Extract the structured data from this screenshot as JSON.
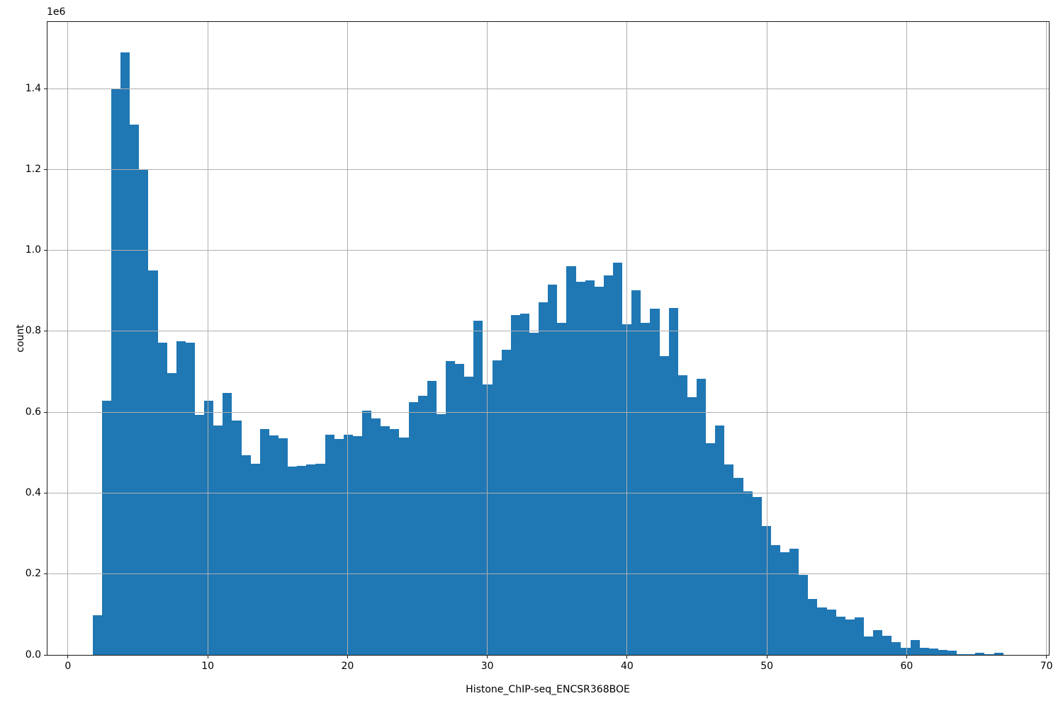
{
  "figure": {
    "background": "#ffffff",
    "bar_color": "#1f77b4",
    "grid_color": "#b0b0b0",
    "spine_color": "#1a1a1a",
    "text_color": "#000000"
  },
  "chart_data": {
    "type": "bar",
    "subtype": "histogram",
    "title": "",
    "xlabel": "Histone_ChIP-seq_ENCSR368BOE",
    "ylabel": "count",
    "y_offset_text": "1e6",
    "grid": true,
    "legend": false,
    "xlim": [
      -1.49,
      70.17
    ],
    "ylim": [
      0,
      1564500
    ],
    "x_ticks": [
      0,
      10,
      20,
      30,
      40,
      50,
      60,
      70
    ],
    "x_tick_labels": [
      "0",
      "10",
      "20",
      "30",
      "40",
      "50",
      "60",
      "70"
    ],
    "y_ticks": [
      0,
      200000,
      400000,
      600000,
      800000,
      1000000,
      1200000,
      1400000
    ],
    "y_tick_labels": [
      "0.0",
      "0.2",
      "0.4",
      "0.6",
      "0.8",
      "1.0",
      "1.2",
      "1.4"
    ],
    "bin_start": 1.77,
    "bin_width": 0.6647,
    "counts": [
      98000,
      629000,
      1400000,
      1490000,
      1310000,
      1201000,
      950000,
      771000,
      697000,
      775000,
      771000,
      593000,
      628000,
      567000,
      647000,
      580000,
      494000,
      472000,
      558000,
      542000,
      536000,
      465000,
      468000,
      471000,
      472000,
      545000,
      534000,
      544000,
      540000,
      604000,
      585000,
      565000,
      558000,
      537000,
      624000,
      640000,
      677000,
      595000,
      727000,
      719000,
      687000,
      826000,
      669000,
      728000,
      755000,
      840000,
      844000,
      797000,
      871000,
      916000,
      821000,
      961000,
      922000,
      925000,
      910000,
      938000,
      970000,
      817000,
      901000,
      821000,
      856000,
      739000,
      858000,
      691000,
      637000,
      683000,
      524000,
      567000,
      471000,
      437000,
      404000,
      390000,
      318000,
      272000,
      254000,
      263000,
      198000,
      138000,
      117000,
      112000,
      95000,
      88000,
      92000,
      46000,
      62000,
      48000,
      31000,
      17000,
      36000,
      18000,
      15000,
      13000,
      10000,
      2000,
      1000,
      6000,
      1000,
      6000
    ]
  }
}
